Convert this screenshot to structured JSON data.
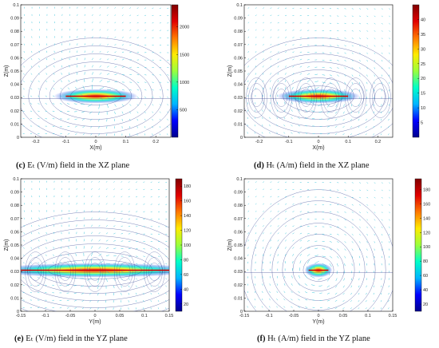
{
  "chart_data": [
    {
      "type": "heatmap",
      "panel": "c",
      "caption_letter": "(c)",
      "caption_text": "Eₜ (V/m) field in the XZ plane",
      "xlabel": "X(m)",
      "ylabel": "Z(m)",
      "xlim": [
        -0.25,
        0.25
      ],
      "ylim": [
        0,
        0.1
      ],
      "xticks": [
        -0.2,
        -0.1,
        0,
        0.1,
        0.2
      ],
      "yticks": [
        0,
        0.01,
        0.02,
        0.03,
        0.04,
        0.05,
        0.06,
        0.07,
        0.08,
        0.09,
        0.1
      ],
      "colorbar": {
        "min": 0,
        "max": 2400,
        "ticks": [
          500,
          1000,
          1500,
          2000
        ]
      },
      "source_z": 0.031,
      "source_x_range": [
        -0.1,
        0.1
      ],
      "peak_value": 2400,
      "overlays": [
        "contour",
        "quiver"
      ]
    },
    {
      "type": "heatmap",
      "panel": "d",
      "caption_letter": "(d)",
      "caption_text": "Hₜ (A/m) field in the XZ plane",
      "xlabel": "X(m)",
      "ylabel": "Z(m)",
      "xlim": [
        -0.25,
        0.25
      ],
      "ylim": [
        0,
        0.1
      ],
      "xticks": [
        -0.2,
        -0.1,
        0,
        0.1,
        0.2
      ],
      "yticks": [
        0,
        0.01,
        0.02,
        0.03,
        0.04,
        0.05,
        0.06,
        0.07,
        0.08,
        0.09,
        0.1
      ],
      "colorbar": {
        "min": 0,
        "max": 45,
        "ticks": [
          5,
          10,
          15,
          20,
          25,
          30,
          35,
          40
        ]
      },
      "source_z": 0.031,
      "source_x_range": [
        -0.1,
        0.1
      ],
      "peak_value": 45,
      "overlays": [
        "contour",
        "quiver"
      ]
    },
    {
      "type": "heatmap",
      "panel": "e",
      "caption_letter": "(e)",
      "caption_text": "Eₜ (V/m) field in the YZ plane",
      "xlabel": "Y(m)",
      "ylabel": "Z(m)",
      "xlim": [
        -0.15,
        0.15
      ],
      "ylim": [
        0,
        0.1
      ],
      "xticks": [
        -0.15,
        -0.1,
        -0.05,
        0,
        0.05,
        0.1,
        0.15
      ],
      "yticks": [
        0,
        0.01,
        0.02,
        0.03,
        0.04,
        0.05,
        0.06,
        0.07,
        0.08,
        0.09,
        0.1
      ],
      "colorbar": {
        "min": 10,
        "max": 190,
        "ticks": [
          20,
          40,
          60,
          80,
          100,
          120,
          140,
          160,
          180
        ]
      },
      "source_z": 0.031,
      "source_x_range": [
        -0.15,
        0.15
      ],
      "peak_value": 190,
      "overlays": [
        "contour",
        "quiver"
      ]
    },
    {
      "type": "heatmap",
      "panel": "f",
      "caption_letter": "(f)",
      "caption_text": "Hₜ (A/m) field in the YZ plane",
      "xlabel": "Y(m)",
      "ylabel": "Z(m)",
      "xlim": [
        -0.15,
        0.15
      ],
      "ylim": [
        0,
        0.1
      ],
      "xticks": [
        -0.15,
        -0.1,
        -0.05,
        0,
        0.05,
        0.1,
        0.15
      ],
      "yticks": [
        0,
        0.01,
        0.02,
        0.03,
        0.04,
        0.05,
        0.06,
        0.07,
        0.08,
        0.09,
        0.1
      ],
      "colorbar": {
        "min": 10,
        "max": 195,
        "ticks": [
          20,
          40,
          60,
          80,
          100,
          120,
          140,
          160,
          180
        ]
      },
      "source_z": 0.031,
      "source_x_range": [
        -0.02,
        0.02
      ],
      "peak_value": 195,
      "overlays": [
        "contour",
        "quiver"
      ]
    }
  ],
  "colors": {
    "colormap": [
      "#00008f",
      "#0000ff",
      "#00b4ff",
      "#00ffc8",
      "#9bff3c",
      "#ffeb00",
      "#ff7800",
      "#e10000",
      "#800000"
    ],
    "quiver": "#3ec6dc",
    "contour": "#2b3d8f",
    "source_line": "#d40000"
  }
}
